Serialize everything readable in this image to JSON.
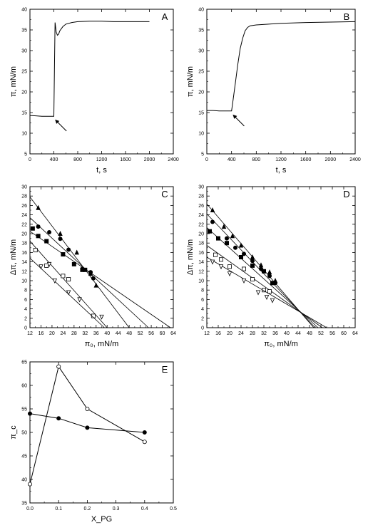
{
  "chart_data": [
    {
      "panel": "A",
      "type": "line",
      "xlabel": "t, s",
      "ylabel": "π, mN/m",
      "xlim": [
        0,
        2400
      ],
      "ylim": [
        5,
        40
      ],
      "xticks": [
        0,
        400,
        800,
        1200,
        1600,
        2000,
        2400
      ],
      "yticks": [
        5,
        10,
        15,
        20,
        25,
        30,
        35,
        40
      ],
      "series": [
        {
          "x": [
            0,
            100,
            200,
            300,
            390,
            400,
            410,
            420,
            440,
            460,
            480,
            500,
            550,
            600,
            700,
            800,
            1000,
            1200,
            1400,
            1600,
            1800,
            2000
          ],
          "y": [
            14.3,
            14.2,
            14.1,
            14.1,
            14.1,
            14.1,
            25,
            36.8,
            34.5,
            33.7,
            34.0,
            34.8,
            35.8,
            36.4,
            36.8,
            37.0,
            37.1,
            37.1,
            37.0,
            37.0,
            37.0,
            37.0
          ]
        }
      ],
      "arrow": {
        "x": 420,
        "y": 13.3
      }
    },
    {
      "panel": "B",
      "type": "line",
      "xlabel": "t, s",
      "ylabel": "π, mN/m",
      "xlim": [
        0,
        2400
      ],
      "ylim": [
        5,
        40
      ],
      "xticks": [
        0,
        400,
        800,
        1200,
        1600,
        2000,
        2400
      ],
      "yticks": [
        5,
        10,
        15,
        20,
        25,
        30,
        35,
        40
      ],
      "series": [
        {
          "x": [
            0,
            100,
            200,
            300,
            390,
            400,
            420,
            460,
            500,
            540,
            580,
            620,
            660,
            700,
            800,
            1000,
            1200,
            1600,
            2000,
            2400
          ],
          "y": [
            15.5,
            15.5,
            15.4,
            15.4,
            15.4,
            15.4,
            17.5,
            22,
            26.5,
            30.5,
            33,
            34.8,
            35.6,
            36.0,
            36.2,
            36.4,
            36.6,
            36.8,
            36.9,
            37.0
          ]
        }
      ],
      "arrow": {
        "x": 420,
        "y": 14.5
      }
    },
    {
      "panel": "C",
      "type": "scatter",
      "xlabel": "π₀, mN/m",
      "ylabel": "Δπ, mN/m",
      "xlim": [
        12,
        64
      ],
      "ylim": [
        0,
        30
      ],
      "xticks": [
        12,
        16,
        20,
        24,
        28,
        32,
        36,
        40,
        44,
        48,
        52,
        56,
        60,
        64
      ],
      "yticks": [
        0,
        2,
        4,
        6,
        8,
        10,
        12,
        14,
        16,
        18,
        20,
        22,
        24,
        26,
        28,
        30
      ],
      "series": [
        {
          "marker": "triangle-up-filled",
          "x": [
            15,
            23,
            29,
            34,
            36
          ],
          "y": [
            25.5,
            20,
            16,
            11.5,
            9
          ],
          "fit": [
            [
              12,
              27.8
            ],
            [
              48,
              0
            ]
          ]
        },
        {
          "marker": "circle-filled",
          "x": [
            15,
            19,
            23,
            26,
            31,
            34,
            35
          ],
          "y": [
            21.5,
            20.3,
            18.9,
            16.6,
            12.5,
            11.8,
            10.5
          ],
          "fit": [
            [
              12,
              23.4
            ],
            [
              55,
              0
            ]
          ]
        },
        {
          "marker": "square-filled",
          "x": [
            13,
            15,
            18,
            24,
            28,
            31,
            32
          ],
          "y": [
            21.1,
            19.5,
            18.4,
            15.6,
            13.5,
            12.3,
            12.3
          ],
          "fit": [
            [
              12,
              20.5
            ],
            [
              63,
              0
            ]
          ]
        },
        {
          "marker": "square-open",
          "x": [
            14,
            18,
            24,
            26,
            35
          ],
          "y": [
            16.5,
            13.2,
            11,
            10.3,
            2.5
          ],
          "fit": [
            [
              12,
              18.4
            ],
            [
              40,
              0
            ]
          ]
        },
        {
          "marker": "triangle-down-open",
          "x": [
            16,
            19,
            21,
            26,
            30,
            38
          ],
          "y": [
            13,
            13.5,
            10,
            7.5,
            6,
            2.3
          ],
          "fit": [
            [
              12,
              14.8
            ],
            [
              39,
              0
            ]
          ]
        }
      ]
    },
    {
      "panel": "D",
      "type": "scatter",
      "xlabel": "π₀, mN/m",
      "ylabel": "Δπ, mN/m",
      "xlim": [
        12,
        64
      ],
      "ylim": [
        0,
        30
      ],
      "xticks": [
        12,
        16,
        20,
        24,
        28,
        32,
        36,
        40,
        44,
        48,
        52,
        56,
        60,
        64
      ],
      "yticks": [
        0,
        2,
        4,
        6,
        8,
        10,
        12,
        14,
        16,
        18,
        20,
        22,
        24,
        26,
        28,
        30
      ],
      "series": [
        {
          "marker": "triangle-up-filled",
          "x": [
            14,
            18,
            21,
            24,
            28,
            31,
            34,
            36
          ],
          "y": [
            25,
            21.5,
            19.5,
            17.5,
            15,
            13.3,
            11.8,
            10
          ],
          "fit": [
            [
              12,
              26.3
            ],
            [
              49.5,
              0
            ]
          ]
        },
        {
          "marker": "circle-filled",
          "x": [
            14,
            19,
            22,
            25,
            28,
            31,
            34,
            36
          ],
          "y": [
            22.5,
            19,
            17,
            15.7,
            14.2,
            12.5,
            11,
            9.5
          ],
          "fit": [
            [
              12,
              24.2
            ],
            [
              50,
              0
            ]
          ]
        },
        {
          "marker": "square-filled",
          "x": [
            13,
            16,
            19,
            24,
            28,
            32,
            35
          ],
          "y": [
            20.5,
            19,
            18,
            15,
            13.2,
            12,
            9.5
          ],
          "fit": [
            [
              12,
              21.3
            ],
            [
              51,
              0
            ]
          ]
        },
        {
          "marker": "square-open",
          "x": [
            15,
            17,
            20,
            25,
            28,
            32,
            34
          ],
          "y": [
            15.5,
            14.5,
            13,
            12.5,
            10.3,
            8,
            7.7
          ],
          "fit": [
            [
              12,
              17.5
            ],
            [
              52.5,
              0
            ]
          ]
        },
        {
          "marker": "triangle-down-open",
          "x": [
            14,
            17,
            20,
            25,
            30,
            33,
            35
          ],
          "y": [
            14,
            13,
            11.5,
            10,
            7.5,
            6.5,
            5.8
          ],
          "fit": [
            [
              12,
              15.0
            ],
            [
              54,
              0
            ]
          ]
        }
      ]
    },
    {
      "panel": "E",
      "type": "line",
      "xlabel": "X_PG",
      "ylabel": "π_c",
      "xlim": [
        0,
        0.5
      ],
      "ylim": [
        35,
        65
      ],
      "xticks": [
        0.0,
        0.1,
        0.2,
        0.3,
        0.4,
        0.5
      ],
      "yticks": [
        35,
        40,
        45,
        50,
        55,
        60,
        65
      ],
      "series": [
        {
          "marker": "circle-open",
          "x": [
            0,
            0.1,
            0.2,
            0.4
          ],
          "y": [
            39,
            64,
            55,
            48
          ]
        },
        {
          "marker": "circle-filled",
          "x": [
            0,
            0.1,
            0.2,
            0.4
          ],
          "y": [
            54,
            53,
            51,
            50
          ]
        }
      ]
    }
  ]
}
